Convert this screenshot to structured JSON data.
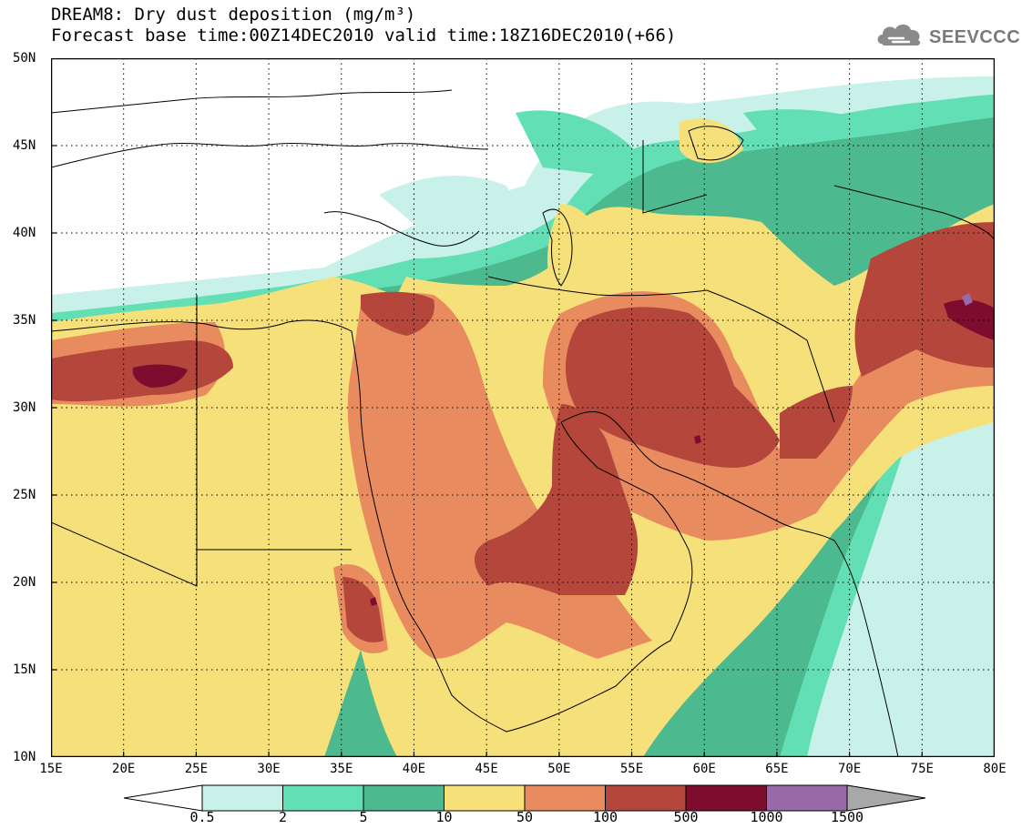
{
  "title": {
    "line1": "DREAM8: Dry dust deposition (mg/m³)",
    "line2": "Forecast base time:00Z14DEC2010 valid time:18Z16DEC2010(+66)"
  },
  "logo": {
    "text": "SEEVCCC",
    "icon": "cloud-logo-icon"
  },
  "map": {
    "lon_range": [
      15,
      80
    ],
    "lat_range": [
      10,
      50
    ],
    "lon_ticks": [
      "15E",
      "20E",
      "25E",
      "30E",
      "35E",
      "40E",
      "45E",
      "50E",
      "55E",
      "60E",
      "65E",
      "70E",
      "75E",
      "80E"
    ],
    "lat_ticks": [
      "50N",
      "45N",
      "40N",
      "35N",
      "30N",
      "25N",
      "20N",
      "15N",
      "10N"
    ],
    "grid": "dotted"
  },
  "colorbar": {
    "labels": [
      "0.5",
      "2",
      "5",
      "10",
      "50",
      "100",
      "500",
      "1000",
      "1500"
    ],
    "colors": [
      "#ffffff",
      "#c8f1ea",
      "#62dfb4",
      "#4cb98e",
      "#f6e07a",
      "#e88c60",
      "#b4463c",
      "#7e0c2e",
      "#9a6aa8",
      "#a8a8a8"
    ]
  }
}
